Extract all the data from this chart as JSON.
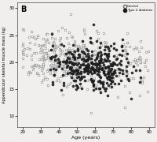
{
  "title_label": "B",
  "xlabel": "Age (years)",
  "ylabel": "Appendicular skeletal muscle mass (kg)",
  "xlim": [
    17,
    93
  ],
  "ylim": [
    8,
    31
  ],
  "xticks": [
    20,
    30,
    40,
    50,
    60,
    70,
    80,
    90
  ],
  "yticks": [
    10,
    15,
    20,
    25,
    30
  ],
  "legend_labels": [
    "Control",
    "Type 2 diabetes"
  ],
  "background_color": "#f0efed",
  "control_color": "white",
  "control_edge": "#666666",
  "diabetes_color": "#222222",
  "diabetes_edge": "#111111",
  "seed": 12,
  "n_control": 400,
  "n_diabetes": 350
}
